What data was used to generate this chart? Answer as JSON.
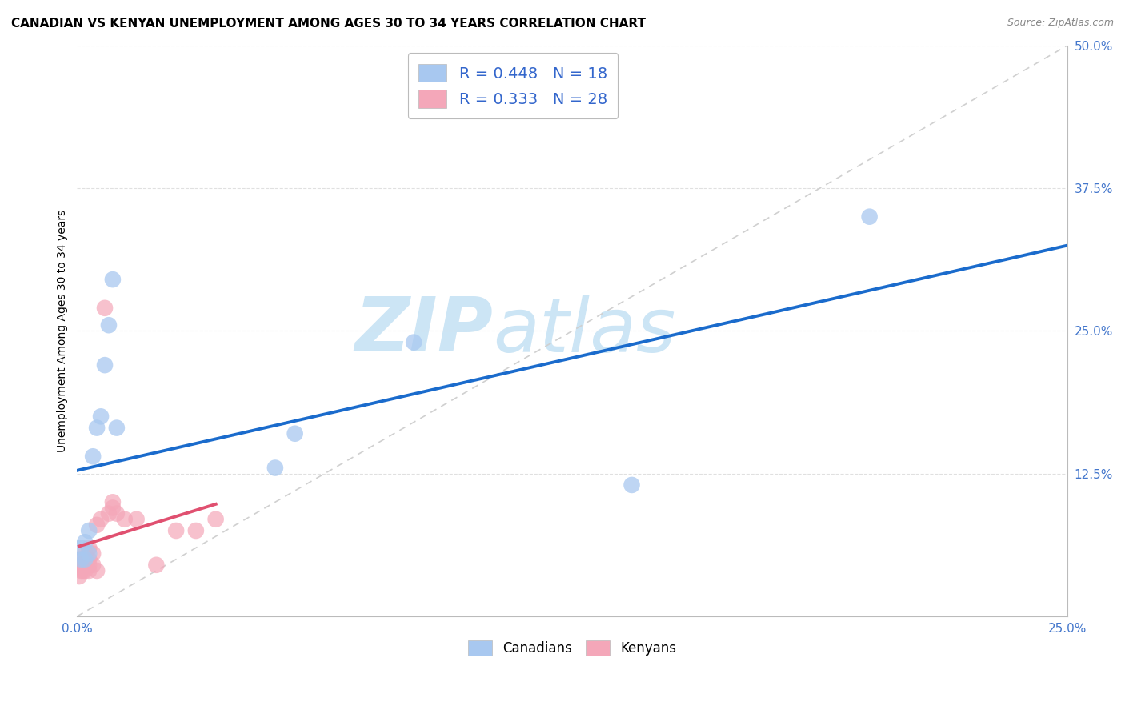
{
  "title": "CANADIAN VS KENYAN UNEMPLOYMENT AMONG AGES 30 TO 34 YEARS CORRELATION CHART",
  "source": "Source: ZipAtlas.com",
  "ylabel": "Unemployment Among Ages 30 to 34 years",
  "xlim": [
    0.0,
    0.25
  ],
  "ylim": [
    0.0,
    0.5
  ],
  "xticks": [
    0.0,
    0.05,
    0.1,
    0.15,
    0.2,
    0.25
  ],
  "yticks": [
    0.0,
    0.125,
    0.25,
    0.375,
    0.5
  ],
  "xtick_labels": [
    "0.0%",
    "",
    "",
    "",
    "",
    "25.0%"
  ],
  "ytick_labels": [
    "",
    "12.5%",
    "25.0%",
    "37.5%",
    "50.0%"
  ],
  "canadians": {
    "x": [
      0.001,
      0.001,
      0.002,
      0.002,
      0.003,
      0.003,
      0.004,
      0.005,
      0.006,
      0.007,
      0.008,
      0.009,
      0.01,
      0.05,
      0.055,
      0.085,
      0.14,
      0.2
    ],
    "y": [
      0.05,
      0.06,
      0.05,
      0.065,
      0.055,
      0.075,
      0.14,
      0.165,
      0.175,
      0.22,
      0.255,
      0.295,
      0.165,
      0.13,
      0.16,
      0.24,
      0.115,
      0.35
    ],
    "R": 0.448,
    "N": 18,
    "scatter_color": "#a8c8f0",
    "line_color": "#1a6bcc"
  },
  "kenyans": {
    "x": [
      0.0005,
      0.001,
      0.001,
      0.001,
      0.0015,
      0.002,
      0.002,
      0.002,
      0.003,
      0.003,
      0.003,
      0.003,
      0.004,
      0.004,
      0.005,
      0.005,
      0.006,
      0.007,
      0.008,
      0.009,
      0.009,
      0.01,
      0.012,
      0.015,
      0.02,
      0.025,
      0.03,
      0.035
    ],
    "y": [
      0.035,
      0.04,
      0.045,
      0.05,
      0.04,
      0.04,
      0.045,
      0.055,
      0.04,
      0.045,
      0.05,
      0.06,
      0.045,
      0.055,
      0.04,
      0.08,
      0.085,
      0.27,
      0.09,
      0.095,
      0.1,
      0.09,
      0.085,
      0.085,
      0.045,
      0.075,
      0.075,
      0.085
    ],
    "R": 0.333,
    "N": 28,
    "scatter_color": "#f4a7b9",
    "line_color": "#e05070"
  },
  "diagonal_color": "#d0d0d0",
  "background_color": "#ffffff",
  "grid_color": "#e0e0e0",
  "title_fontsize": 11,
  "axis_label_fontsize": 10,
  "tick_fontsize": 11,
  "watermark_zip": "ZIP",
  "watermark_atlas": "atlas",
  "watermark_color": "#cce5f5"
}
